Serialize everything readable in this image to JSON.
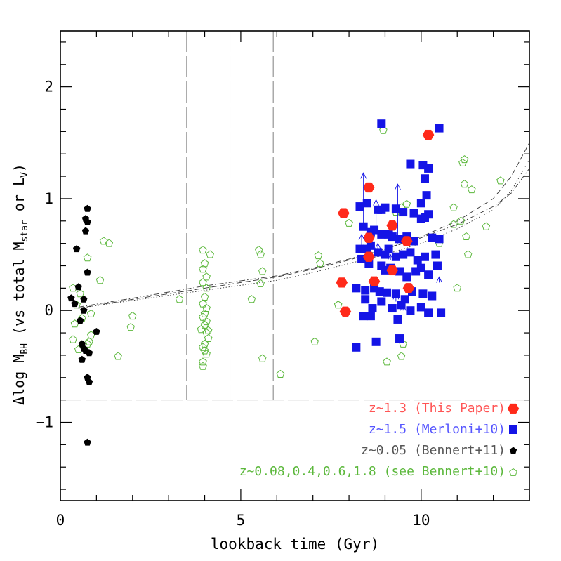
{
  "chart_data": {
    "type": "scatter",
    "xlabel": "lookback time (Gyr)",
    "ylabel_parts": {
      "delta": "Δlog M",
      "bh_sub": "BH",
      "mid": " (vs total M",
      "star_sub": "star",
      "or": " or L",
      "v_sub": "V",
      "close": ")"
    },
    "xlim": [
      0,
      13
    ],
    "ylim": [
      -1.7,
      2.5
    ],
    "x_ticks_major": [
      0,
      5,
      10
    ],
    "y_ticks_major": [
      -1,
      0,
      1,
      2
    ],
    "x_tick_labels": [
      "0",
      "5",
      "10"
    ],
    "y_tick_labels": [
      "−1",
      "0",
      "1",
      "2"
    ],
    "colors": {
      "this_paper": "#ff2a1a",
      "merloni": "#1414e6",
      "bennert11": "#000000",
      "bennert10": "#5cb83c",
      "axes": "#000000",
      "guides": "#808080",
      "legend_red": "#ff5555",
      "legend_blue": "#5555ff",
      "legend_black": "#555555",
      "legend_green": "#5cb83c"
    },
    "legend": [
      {
        "label": "z~1.3 (This Paper)",
        "marker": "hexagon"
      },
      {
        "label": "z~1.5 (Merloni+10)",
        "marker": "square"
      },
      {
        "label": "z~0.05 (Bennert+11)",
        "marker": "pentagon-filled"
      },
      {
        "label": "z~0.08,0.4,0.6,1.8 (see Bennert+10)",
        "marker": "pentagon-open"
      }
    ],
    "guides": {
      "vlines": [
        3.5,
        4.7,
        5.9
      ],
      "hline_y": -0.8
    },
    "series": [
      {
        "name": "z~1.3 (This Paper)",
        "marker": "hexagon",
        "x": [
          7.85,
          7.8,
          7.9,
          8.55,
          8.55,
          8.55,
          8.7,
          9.2,
          9.2,
          9.6,
          9.65,
          10.2
        ],
        "y": [
          0.87,
          0.25,
          -0.01,
          1.1,
          0.65,
          0.48,
          0.26,
          0.76,
          0.36,
          0.62,
          0.2,
          1.57
        ]
      },
      {
        "name": "z~1.5 (Merloni+10)",
        "marker": "square",
        "x": [
          8.9,
          10.5,
          10.05,
          9.7,
          10.2,
          10.1,
          10.15,
          10.0,
          8.3,
          8.5,
          8.8,
          8.9,
          9.0,
          9.3,
          9.5,
          9.8,
          10.0,
          10.1,
          10.2,
          8.4,
          8.6,
          8.7,
          8.9,
          9.1,
          9.2,
          9.4,
          9.6,
          9.8,
          10.3,
          10.5,
          8.3,
          8.5,
          8.6,
          8.8,
          9.0,
          9.1,
          9.3,
          9.5,
          9.7,
          9.9,
          10.1,
          10.4,
          8.35,
          8.55,
          8.9,
          9.0,
          9.15,
          9.4,
          9.6,
          9.85,
          10.0,
          10.2,
          10.45,
          8.2,
          8.45,
          8.7,
          8.85,
          9.05,
          9.3,
          9.55,
          9.75,
          10.05,
          10.3,
          8.45,
          8.65,
          8.9,
          9.2,
          9.45,
          9.7,
          10.0,
          10.2,
          10.55,
          8.6,
          9.35,
          9.4,
          8.75,
          8.4,
          8.2
        ],
        "y": [
          1.67,
          1.63,
          1.3,
          1.31,
          1.27,
          1.18,
          1.03,
          0.96,
          0.93,
          0.96,
          0.9,
          0.9,
          0.92,
          0.91,
          0.88,
          0.87,
          0.82,
          0.83,
          0.86,
          0.75,
          0.7,
          0.72,
          0.68,
          0.68,
          0.66,
          0.64,
          0.66,
          0.62,
          0.65,
          0.64,
          0.55,
          0.55,
          0.58,
          0.52,
          0.5,
          0.55,
          0.48,
          0.5,
          0.52,
          0.45,
          0.48,
          0.5,
          0.46,
          0.42,
          0.4,
          0.36,
          0.38,
          0.35,
          0.3,
          0.35,
          0.38,
          0.32,
          0.4,
          0.2,
          0.18,
          0.2,
          0.17,
          0.16,
          0.15,
          0.1,
          0.17,
          0.15,
          0.13,
          0.1,
          0.02,
          0.08,
          0.02,
          0.05,
          0.0,
          0.03,
          -0.02,
          -0.02,
          -0.05,
          -0.08,
          -0.25,
          -0.28,
          -0.05,
          -0.33
        ]
      },
      {
        "name": "z~0.05 (Bennert+11)",
        "marker": "pentagon-filled",
        "x": [
          0.75,
          0.7,
          0.75,
          0.7,
          0.45,
          0.75,
          0.5,
          0.3,
          0.4,
          0.65,
          0.65,
          0.55,
          1.0,
          0.6,
          0.65,
          0.7,
          0.8,
          0.6,
          0.75,
          0.8,
          0.75
        ],
        "y": [
          0.91,
          0.82,
          0.79,
          0.71,
          0.55,
          0.34,
          0.21,
          0.11,
          0.06,
          0.1,
          0.0,
          -0.09,
          -0.19,
          -0.3,
          -0.34,
          -0.36,
          -0.38,
          -0.44,
          -0.6,
          -0.64,
          -1.18
        ]
      },
      {
        "name": "z~0.08,0.4,0.6,1.8 (see Bennert+10)",
        "marker": "pentagon-open",
        "x": [
          1.2,
          1.35,
          0.75,
          1.1,
          0.35,
          0.55,
          0.45,
          0.85,
          0.6,
          0.4,
          0.85,
          1.6,
          2.0,
          1.95,
          0.35,
          0.75,
          0.8,
          0.5,
          3.3,
          3.95,
          4.15,
          4.0,
          3.95,
          4.05,
          3.95,
          4.05,
          4.0,
          3.95,
          4.05,
          4.0,
          3.95,
          4.05,
          4.0,
          3.9,
          4.05,
          4.1,
          4.0,
          3.95,
          4.0,
          4.05,
          3.95,
          3.95,
          4.1,
          5.5,
          5.55,
          5.6,
          5.55,
          5.3,
          5.6,
          6.1,
          7.15,
          7.2,
          7.05,
          7.7,
          8.95,
          9.05,
          9.45,
          8.0,
          9.45,
          9.3,
          9.6,
          10.9,
          11.1,
          11.25,
          11.3,
          11.2,
          11.15,
          11.4,
          11.2,
          11.8,
          12.2,
          11.0,
          9.5,
          10.5,
          10.9
        ],
        "y": [
          0.62,
          0.6,
          0.47,
          0.27,
          0.2,
          0.15,
          0.05,
          -0.03,
          -0.07,
          -0.12,
          -0.22,
          -0.41,
          -0.05,
          -0.15,
          -0.26,
          -0.3,
          -0.28,
          -0.35,
          0.1,
          0.54,
          0.5,
          0.42,
          0.37,
          0.3,
          0.25,
          0.2,
          0.12,
          0.06,
          0.02,
          -0.03,
          -0.06,
          -0.1,
          -0.13,
          -0.17,
          -0.2,
          -0.25,
          -0.3,
          -0.33,
          -0.36,
          -0.39,
          -0.46,
          -0.5,
          -0.18,
          0.54,
          0.5,
          0.35,
          0.24,
          0.1,
          -0.43,
          -0.57,
          0.49,
          0.42,
          -0.28,
          0.05,
          1.61,
          -0.46,
          -0.41,
          0.78,
          0.92,
          0.88,
          0.95,
          0.77,
          0.8,
          0.66,
          0.5,
          1.35,
          1.32,
          1.08,
          1.13,
          0.75,
          1.16,
          0.2,
          -0.3,
          0.6,
          0.92
        ]
      }
    ],
    "arrows": [
      {
        "x": 8.4,
        "y_from": 0.75,
        "y_to": 1.23
      },
      {
        "x": 9.35,
        "y_from": 0.6,
        "y_to": 1.13
      },
      {
        "x": 8.75,
        "y_from": 0.75,
        "y_to": 0.99
      },
      {
        "x": 8.35,
        "y_from": 0.52,
        "y_to": 0.68
      },
      {
        "x": 8.8,
        "y_from": 0.55,
        "y_to": 0.6
      },
      {
        "x": 8.9,
        "y_from": 0.47,
        "y_to": 0.53
      },
      {
        "x": 9.15,
        "y_from": 0.45,
        "y_to": 0.5
      },
      {
        "x": 9.3,
        "y_from": 0.08,
        "y_to": 0.15
      },
      {
        "x": 9.5,
        "y_from": 0.0,
        "y_to": 0.05
      },
      {
        "x": 10.5,
        "y_from": 0.25,
        "y_to": 0.3
      }
    ],
    "trend_curves": [
      {
        "style": "dashed",
        "x": [
          0.5,
          2,
          4,
          6,
          7,
          8,
          9,
          10,
          11,
          12,
          12.5,
          13
        ],
        "y": [
          0.02,
          0.1,
          0.2,
          0.3,
          0.37,
          0.45,
          0.55,
          0.66,
          0.8,
          1.0,
          1.2,
          1.5
        ]
      },
      {
        "style": "dotted",
        "x": [
          0.5,
          2,
          4,
          6,
          7,
          8,
          9,
          10,
          11,
          12,
          12.5,
          13
        ],
        "y": [
          0.02,
          0.09,
          0.18,
          0.27,
          0.34,
          0.42,
          0.5,
          0.6,
          0.73,
          0.9,
          1.07,
          1.35
        ]
      },
      {
        "style": "dashdot",
        "x": [
          0.5,
          2,
          4,
          6,
          7,
          8,
          9,
          10,
          11,
          12,
          12.5,
          13
        ],
        "y": [
          0.03,
          0.11,
          0.22,
          0.31,
          0.38,
          0.46,
          0.55,
          0.65,
          0.77,
          0.93,
          1.05,
          1.27
        ]
      }
    ]
  }
}
